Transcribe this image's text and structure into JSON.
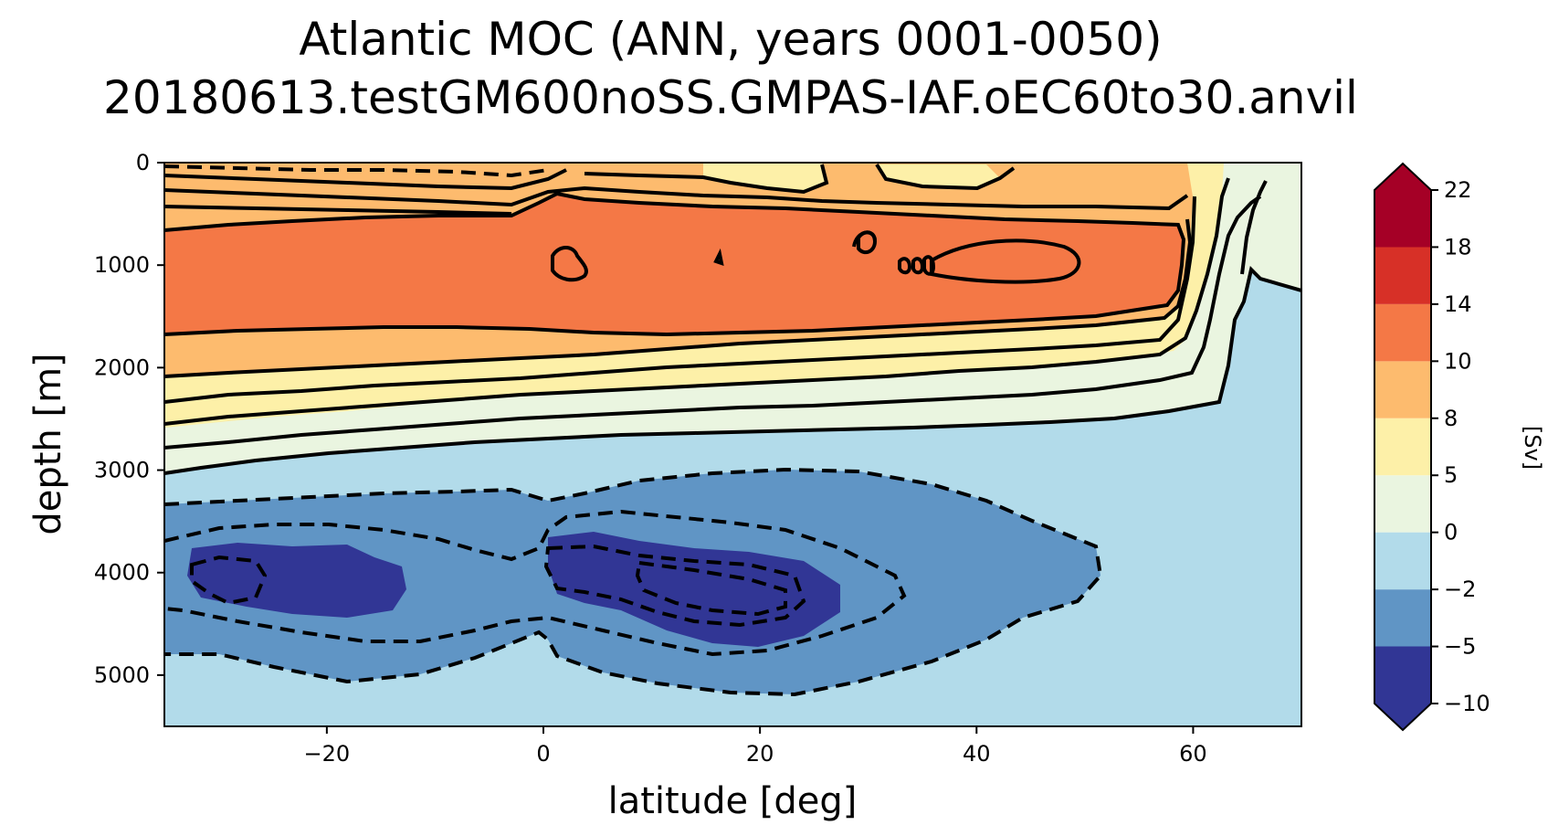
{
  "chart_data": {
    "type": "contour",
    "title_line1": "Atlantic MOC (ANN, years 0001-0050)",
    "title_line2": "20180613.testGM600noSS.GMPAS-IAF.oEC60to30.anvil",
    "xlabel": "latitude [deg]",
    "ylabel": "depth [m]",
    "xlim": [
      -35,
      70
    ],
    "ylim": [
      0,
      5500
    ],
    "y_inverted": true,
    "xticks": [
      -20,
      0,
      20,
      40,
      60
    ],
    "xtick_labels": [
      "−20",
      "0",
      "20",
      "40",
      "60"
    ],
    "yticks": [
      0,
      1000,
      2000,
      3000,
      4000,
      5000
    ],
    "ytick_labels": [
      "0",
      "1000",
      "2000",
      "3000",
      "4000",
      "5000"
    ],
    "colorbar": {
      "label": "[Sv]",
      "levels": [
        -10,
        -5,
        -2,
        0,
        5,
        8,
        10,
        14,
        18,
        22
      ],
      "tick_labels": [
        "−10",
        "−5",
        "−2",
        "0",
        "5",
        "8",
        "10",
        "14",
        "18",
        "22"
      ],
      "colors": [
        "#313695",
        "#6095c5",
        "#b2dbea",
        "#eaf5e0",
        "#fdf0a8",
        "#fdbb6e",
        "#f47846",
        "#d73027",
        "#a50026"
      ],
      "extend": "both"
    },
    "contours": {
      "positive_solid": [
        0,
        2,
        4,
        6,
        8,
        10,
        12
      ],
      "negative_dashed": [
        -2,
        -4,
        -6,
        -8
      ],
      "line_color": "#000000"
    }
  }
}
